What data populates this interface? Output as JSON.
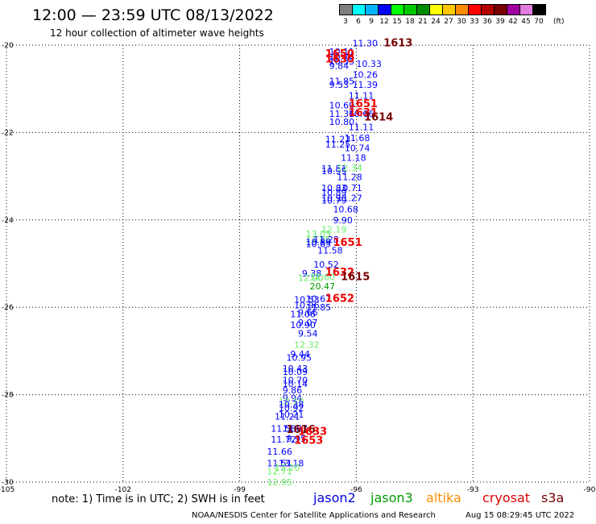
{
  "header": {
    "title": "12:00 — 23:59 UTC 08/13/2022",
    "subtitle": "12 hour collection of altimeter wave heights"
  },
  "color_scale": {
    "unit": "(ft)",
    "bins": [
      {
        "label": "3",
        "color": "#808080"
      },
      {
        "label": "6",
        "color": "#00ffff"
      },
      {
        "label": "9",
        "color": "#00b4ff"
      },
      {
        "label": "12",
        "color": "#0000ff"
      },
      {
        "label": "15",
        "color": "#00ff00"
      },
      {
        "label": "18",
        "color": "#00c800"
      },
      {
        "label": "21",
        "color": "#008c00"
      },
      {
        "label": "24",
        "color": "#ffff00"
      },
      {
        "label": "27",
        "color": "#ffc800"
      },
      {
        "label": "30",
        "color": "#ff8c00"
      },
      {
        "label": "33",
        "color": "#ff0000"
      },
      {
        "label": "36",
        "color": "#b40000"
      },
      {
        "label": "39",
        "color": "#780000"
      },
      {
        "label": "42",
        "color": "#a000a0"
      },
      {
        "label": "45",
        "color": "#e07be0"
      },
      {
        "label": "70",
        "color": "#000000"
      }
    ]
  },
  "footer": {
    "note": "note:  1) Time is in UTC; 2) SWH is in feet",
    "satellites": [
      {
        "name": "jason2",
        "color": "#0000dd"
      },
      {
        "name": "jason3",
        "color": "#009900"
      },
      {
        "name": "altika",
        "color": "#ff8c00"
      },
      {
        "name": "cryosat",
        "color": "#dd0000"
      },
      {
        "name": "s3a",
        "color": "#780000"
      }
    ],
    "credit": "NOAA/NESDIS Center for Satellite Applications and Research",
    "timestamp": "Aug 15 08:29:45 UTC 2022"
  },
  "chart_data": {
    "type": "scatter",
    "title": "12 hour collection of altimeter wave heights",
    "xlim": [
      -105,
      -90
    ],
    "ylim": [
      -30,
      -20
    ],
    "x_ticks": [
      "-105",
      "-102",
      "-99",
      "-96",
      "-93",
      "-90"
    ],
    "y_ticks": [
      "-20",
      "-22",
      "-24",
      "-26",
      "-28",
      "-30"
    ],
    "grid": true,
    "swh_labels": [
      {
        "lon": -96.1,
        "lat": -19.95,
        "text": "11.30",
        "color": "#0000ff"
      },
      {
        "lon": -96.7,
        "lat": -20.15,
        "text": "10.11",
        "color": "#0000ff"
      },
      {
        "lon": -96.7,
        "lat": -20.27,
        "text": "10.76",
        "color": "#0000ff"
      },
      {
        "lon": -96.7,
        "lat": -20.37,
        "text": "10.33",
        "color": "#0000ff"
      },
      {
        "lon": -96.7,
        "lat": -20.47,
        "text": "9.84",
        "color": "#0000ff"
      },
      {
        "lon": -96.0,
        "lat": -20.42,
        "text": "10.33",
        "color": "#0000ff"
      },
      {
        "lon": -96.1,
        "lat": -20.67,
        "text": "10.26",
        "color": "#0000ff"
      },
      {
        "lon": -96.7,
        "lat": -20.82,
        "text": "11.85",
        "color": "#0000ff"
      },
      {
        "lon": -96.7,
        "lat": -20.9,
        "text": "9.53",
        "color": "#0000ff"
      },
      {
        "lon": -96.1,
        "lat": -20.9,
        "text": "11.39",
        "color": "#0000ff"
      },
      {
        "lon": -96.2,
        "lat": -21.15,
        "text": "11.11",
        "color": "#0000ff"
      },
      {
        "lon": -96.7,
        "lat": -21.37,
        "text": "10.69",
        "color": "#0000ff"
      },
      {
        "lon": -96.7,
        "lat": -21.57,
        "text": "11.36",
        "color": "#0000ff"
      },
      {
        "lon": -96.2,
        "lat": -21.57,
        "text": "10.66",
        "color": "#0000ff"
      },
      {
        "lon": -96.7,
        "lat": -21.75,
        "text": "10.80",
        "color": "#0000ff"
      },
      {
        "lon": -96.2,
        "lat": -21.87,
        "text": "11.11",
        "color": "#0000ff"
      },
      {
        "lon": -96.8,
        "lat": -22.15,
        "text": "11.23",
        "color": "#0000ff"
      },
      {
        "lon": -96.8,
        "lat": -22.27,
        "text": "11.25",
        "color": "#0000ff"
      },
      {
        "lon": -96.3,
        "lat": -22.12,
        "text": "11.68",
        "color": "#0000ff"
      },
      {
        "lon": -96.3,
        "lat": -22.35,
        "text": "10.74",
        "color": "#0000ff"
      },
      {
        "lon": -96.4,
        "lat": -22.57,
        "text": "11.18",
        "color": "#0000ff"
      },
      {
        "lon": -96.9,
        "lat": -22.82,
        "text": "11.51",
        "color": "#0000ff"
      },
      {
        "lon": -96.9,
        "lat": -22.88,
        "text": "10.95",
        "color": "#0000ff"
      },
      {
        "lon": -96.5,
        "lat": -22.8,
        "text": "12.34",
        "color": "#66ee66"
      },
      {
        "lon": -96.5,
        "lat": -23.02,
        "text": "11.28",
        "color": "#0000ff"
      },
      {
        "lon": -96.9,
        "lat": -23.27,
        "text": "10.83",
        "color": "#0000ff"
      },
      {
        "lon": -96.5,
        "lat": -23.27,
        "text": "10.71",
        "color": "#0000ff"
      },
      {
        "lon": -96.9,
        "lat": -23.37,
        "text": "10.89",
        "color": "#0000ff"
      },
      {
        "lon": -96.9,
        "lat": -23.5,
        "text": "10.96",
        "color": "#0000ff"
      },
      {
        "lon": -96.9,
        "lat": -23.55,
        "text": "10.79",
        "color": "#0000ff"
      },
      {
        "lon": -96.5,
        "lat": -23.5,
        "text": "11.27",
        "color": "#0000ff"
      },
      {
        "lon": -96.6,
        "lat": -23.75,
        "text": "10.68",
        "color": "#0000ff"
      },
      {
        "lon": -96.6,
        "lat": -24.0,
        "text": "9.90",
        "color": "#0000ff"
      },
      {
        "lon": -96.9,
        "lat": -24.22,
        "text": "12.19",
        "color": "#66ee66"
      },
      {
        "lon": -97.3,
        "lat": -24.32,
        "text": "13.05",
        "color": "#66ee66"
      },
      {
        "lon": -97.3,
        "lat": -24.45,
        "text": "11.86",
        "color": "#66ee66"
      },
      {
        "lon": -97.1,
        "lat": -24.45,
        "text": "11.28",
        "color": "#0000ff"
      },
      {
        "lon": -97.3,
        "lat": -24.55,
        "text": "10.65",
        "color": "#0000ff"
      },
      {
        "lon": -97.3,
        "lat": -24.5,
        "text": "10.89",
        "color": "#0000ff"
      },
      {
        "lon": -97.0,
        "lat": -24.7,
        "text": "11.58",
        "color": "#0000ff"
      },
      {
        "lon": -97.1,
        "lat": -25.02,
        "text": "10.52",
        "color": "#0000ff"
      },
      {
        "lon": -97.4,
        "lat": -25.22,
        "text": "9.38",
        "color": "#0000ff"
      },
      {
        "lon": -97.5,
        "lat": -25.32,
        "text": "12.90",
        "color": "#66ee66"
      },
      {
        "lon": -97.2,
        "lat": -25.3,
        "text": "12.60",
        "color": "#66ee66"
      },
      {
        "lon": -97.2,
        "lat": -25.52,
        "text": "20.47",
        "color": "#009900"
      },
      {
        "lon": -97.6,
        "lat": -25.82,
        "text": "10.53",
        "color": "#0000ff"
      },
      {
        "lon": -97.3,
        "lat": -25.8,
        "text": "10.67",
        "color": "#0000ff"
      },
      {
        "lon": -97.6,
        "lat": -25.95,
        "text": "10.96",
        "color": "#0000ff"
      },
      {
        "lon": -97.3,
        "lat": -26.0,
        "text": "11.85",
        "color": "#0000ff"
      },
      {
        "lon": -97.7,
        "lat": -26.15,
        "text": "11.06",
        "color": "#0000ff"
      },
      {
        "lon": -97.5,
        "lat": -26.12,
        "text": "9.66",
        "color": "#0000ff"
      },
      {
        "lon": -97.5,
        "lat": -26.35,
        "text": "9.07",
        "color": "#0000ff"
      },
      {
        "lon": -97.7,
        "lat": -26.4,
        "text": "10.90",
        "color": "#0000ff"
      },
      {
        "lon": -97.5,
        "lat": -26.6,
        "text": "9.54",
        "color": "#0000ff"
      },
      {
        "lon": -97.6,
        "lat": -26.85,
        "text": "12.32",
        "color": "#66ee66"
      },
      {
        "lon": -97.7,
        "lat": -27.07,
        "text": "9.44",
        "color": "#0000ff"
      },
      {
        "lon": -97.8,
        "lat": -27.15,
        "text": "10.95",
        "color": "#0000ff"
      },
      {
        "lon": -97.9,
        "lat": -27.4,
        "text": "10.43",
        "color": "#0000ff"
      },
      {
        "lon": -97.9,
        "lat": -27.47,
        "text": "10.09",
        "color": "#0000ff"
      },
      {
        "lon": -97.9,
        "lat": -27.67,
        "text": "10.70",
        "color": "#0000ff"
      },
      {
        "lon": -97.9,
        "lat": -27.75,
        "text": "10.14",
        "color": "#0000ff"
      },
      {
        "lon": -97.9,
        "lat": -27.9,
        "text": "9.86",
        "color": "#0000ff"
      },
      {
        "lon": -97.9,
        "lat": -28.07,
        "text": "9.94",
        "color": "#0000ff"
      },
      {
        "lon": -98.0,
        "lat": -28.15,
        "text": "12.10",
        "color": "#66ee66"
      },
      {
        "lon": -98.0,
        "lat": -28.22,
        "text": "10.38",
        "color": "#0000ff"
      },
      {
        "lon": -98.0,
        "lat": -28.3,
        "text": "10.92",
        "color": "#0000ff"
      },
      {
        "lon": -98.1,
        "lat": -28.5,
        "text": "11.21",
        "color": "#0000ff"
      },
      {
        "lon": -98.0,
        "lat": -28.45,
        "text": "10.21",
        "color": "#0000ff"
      },
      {
        "lon": -98.2,
        "lat": -28.77,
        "text": "11.58",
        "color": "#0000ff"
      },
      {
        "lon": -97.9,
        "lat": -28.77,
        "text": "11.87",
        "color": "#0000ff"
      },
      {
        "lon": -98.2,
        "lat": -29.02,
        "text": "11.72",
        "color": "#0000ff"
      },
      {
        "lon": -97.8,
        "lat": -29.0,
        "text": "9.95",
        "color": "#0000ff"
      },
      {
        "lon": -98.3,
        "lat": -29.3,
        "text": "11.66",
        "color": "#0000ff"
      },
      {
        "lon": -98.3,
        "lat": -29.57,
        "text": "11.51",
        "color": "#0000ff"
      },
      {
        "lon": -98.0,
        "lat": -29.57,
        "text": "13.18",
        "color": "#0000ff"
      },
      {
        "lon": -98.1,
        "lat": -29.67,
        "text": "12.20",
        "color": "#66ee66"
      },
      {
        "lon": -98.3,
        "lat": -29.75,
        "text": "12.71",
        "color": "#66ee66"
      },
      {
        "lon": -98.3,
        "lat": -30.0,
        "text": "12.95",
        "color": "#66ee66"
      }
    ],
    "track_labels": [
      {
        "lon": -95.3,
        "lat": -19.95,
        "text": "1613",
        "color": "#780000"
      },
      {
        "lon": -96.8,
        "lat": -20.2,
        "text": "1650",
        "color": "#ee0000"
      },
      {
        "lon": -96.8,
        "lat": -20.32,
        "text": "1630",
        "color": "#ee0000"
      },
      {
        "lon": -96.2,
        "lat": -21.35,
        "text": "1651",
        "color": "#ee0000"
      },
      {
        "lon": -96.2,
        "lat": -21.55,
        "text": "1631",
        "color": "#ee0000"
      },
      {
        "lon": -95.8,
        "lat": -21.65,
        "text": "1614",
        "color": "#780000"
      },
      {
        "lon": -96.6,
        "lat": -24.52,
        "text": "1651",
        "color": "#ee0000"
      },
      {
        "lon": -96.8,
        "lat": -25.2,
        "text": "1632",
        "color": "#ee0000"
      },
      {
        "lon": -96.4,
        "lat": -25.3,
        "text": "1615",
        "color": "#780000"
      },
      {
        "lon": -96.8,
        "lat": -25.8,
        "text": "1652",
        "color": "#ee0000"
      },
      {
        "lon": -97.8,
        "lat": -28.8,
        "text": "1616",
        "color": "#780000"
      },
      {
        "lon": -97.5,
        "lat": -28.85,
        "text": "1633",
        "color": "#ee0000"
      },
      {
        "lon": -97.6,
        "lat": -29.05,
        "text": "1653",
        "color": "#ee0000"
      }
    ]
  }
}
